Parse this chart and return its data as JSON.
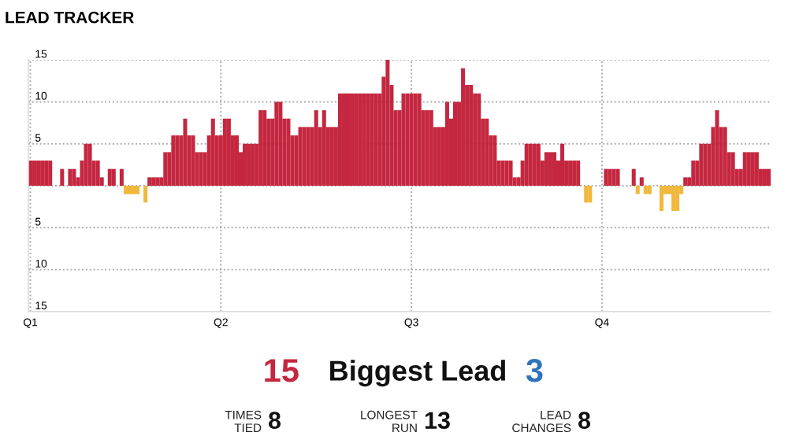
{
  "chart_data": {
    "type": "bar",
    "title": "LEAD TRACKER",
    "categories": [
      "Q1",
      null,
      null,
      null,
      null,
      null,
      null,
      null,
      null,
      null,
      null,
      null,
      null,
      null,
      null,
      null,
      null,
      null,
      null,
      null,
      null,
      null,
      null,
      null,
      null,
      null,
      null,
      null,
      null,
      null,
      null,
      null,
      null,
      null,
      null,
      null,
      null,
      null,
      null,
      null,
      null,
      null,
      null,
      null,
      null,
      null,
      null,
      null,
      "Q2",
      null,
      null,
      null,
      null,
      null,
      null,
      null,
      null,
      null,
      null,
      null,
      null,
      null,
      null,
      null,
      null,
      null,
      null,
      null,
      null,
      null,
      null,
      null,
      null,
      null,
      null,
      null,
      null,
      null,
      null,
      null,
      null,
      null,
      null,
      null,
      null,
      null,
      null,
      null,
      null,
      null,
      null,
      null,
      null,
      null,
      null,
      null,
      "Q3",
      null,
      null,
      null,
      null,
      null,
      null,
      null,
      null,
      null,
      null,
      null,
      null,
      null,
      null,
      null,
      null,
      null,
      null,
      null,
      null,
      null,
      null,
      null,
      null,
      null,
      null,
      null,
      null,
      null,
      null,
      null,
      null,
      null,
      null,
      null,
      null,
      null,
      null,
      null,
      null,
      null,
      null,
      null,
      null,
      null,
      null,
      null,
      "Q4",
      null,
      null,
      null,
      null,
      null,
      null,
      null,
      null,
      null,
      null,
      null,
      null,
      null,
      null,
      null,
      null,
      null,
      null,
      null,
      null,
      null,
      null,
      null,
      null,
      null,
      null,
      null,
      null,
      null,
      null,
      null,
      null,
      null,
      null,
      null,
      null,
      null,
      null,
      null,
      null,
      null,
      null
    ],
    "series": [
      {
        "color": "#c4273f",
        "values": [
          3,
          3,
          3,
          3,
          3,
          3,
          null,
          null,
          2,
          null,
          2,
          2,
          1,
          3,
          5,
          5,
          3,
          3,
          1,
          null,
          2,
          2,
          null,
          2,
          null,
          null,
          null,
          null,
          null,
          null,
          1,
          1,
          1,
          1,
          4,
          4,
          6,
          6,
          6,
          8,
          6,
          6,
          4,
          4,
          4,
          6,
          8,
          6,
          6,
          8,
          8,
          6,
          6,
          4,
          5,
          5,
          5,
          5,
          9,
          9,
          8,
          8,
          10,
          10,
          8,
          8,
          6,
          6,
          7,
          7,
          7,
          7,
          9,
          7,
          9,
          7,
          7,
          7,
          11,
          11,
          11,
          11,
          11,
          11,
          11,
          11,
          11,
          11,
          11,
          13,
          15,
          12,
          9,
          9,
          11,
          11,
          11,
          11,
          11,
          9,
          9,
          9,
          7,
          7,
          7,
          10,
          8,
          10,
          10,
          14,
          12,
          12,
          11,
          11,
          8,
          8,
          6,
          6,
          3,
          3,
          3,
          3,
          1,
          1,
          3,
          5,
          5,
          5,
          5,
          3,
          4,
          4,
          4,
          3,
          5,
          3,
          3,
          3,
          3,
          null,
          null,
          null,
          null,
          null,
          null,
          2,
          2,
          2,
          2,
          null,
          null,
          null,
          2,
          null,
          1,
          null,
          null,
          null,
          null,
          null,
          null,
          null,
          null,
          null,
          null,
          1,
          1,
          3,
          3,
          5,
          5,
          5,
          7,
          9,
          7,
          7,
          4,
          4,
          2,
          2,
          4,
          4,
          4,
          4,
          2,
          2,
          2
        ]
      },
      {
        "color": "#f0b83c",
        "values": [
          null,
          null,
          null,
          null,
          null,
          null,
          null,
          null,
          null,
          null,
          null,
          null,
          null,
          null,
          null,
          null,
          null,
          null,
          null,
          null,
          null,
          null,
          null,
          null,
          -1,
          -1,
          -1,
          -1,
          null,
          -2,
          null,
          null,
          null,
          null,
          null,
          null,
          null,
          null,
          null,
          null,
          null,
          null,
          null,
          null,
          null,
          null,
          null,
          null,
          null,
          null,
          null,
          null,
          null,
          null,
          null,
          null,
          null,
          null,
          null,
          null,
          null,
          null,
          null,
          null,
          null,
          null,
          null,
          null,
          null,
          null,
          null,
          null,
          null,
          null,
          null,
          null,
          null,
          null,
          null,
          null,
          null,
          null,
          null,
          null,
          null,
          null,
          null,
          null,
          null,
          null,
          null,
          null,
          null,
          null,
          null,
          null,
          null,
          null,
          null,
          null,
          null,
          null,
          null,
          null,
          null,
          null,
          null,
          null,
          null,
          null,
          null,
          null,
          null,
          null,
          null,
          null,
          null,
          null,
          null,
          null,
          null,
          null,
          null,
          null,
          null,
          null,
          null,
          null,
          null,
          null,
          null,
          null,
          null,
          null,
          null,
          null,
          null,
          null,
          null,
          null,
          -2,
          -2,
          null,
          null,
          null,
          null,
          null,
          null,
          null,
          null,
          null,
          null,
          null,
          -1,
          null,
          -1,
          -1,
          null,
          null,
          -3,
          -1,
          -1,
          -3,
          -3,
          -1,
          null,
          null,
          null,
          null,
          null,
          null,
          null,
          null,
          null,
          null,
          null,
          null,
          null,
          null,
          null,
          null,
          null,
          null,
          null,
          null,
          null,
          null
        ]
      }
    ],
    "ylim": [
      -15,
      15
    ],
    "yticks": [
      {
        "value": -15,
        "label": "15"
      },
      {
        "value": -10,
        "label": "10"
      },
      {
        "value": -5,
        "label": "5"
      },
      {
        "value": 0,
        "label": null
      },
      5,
      10,
      15
    ],
    "grid": true,
    "annotations": [
      "15",
      "Biggest Lead",
      "3",
      "TIMES\nTIED",
      "8",
      "LONGEST\nRUN",
      "13",
      "LEAD\nCHANGES",
      "8"
    ]
  }
}
